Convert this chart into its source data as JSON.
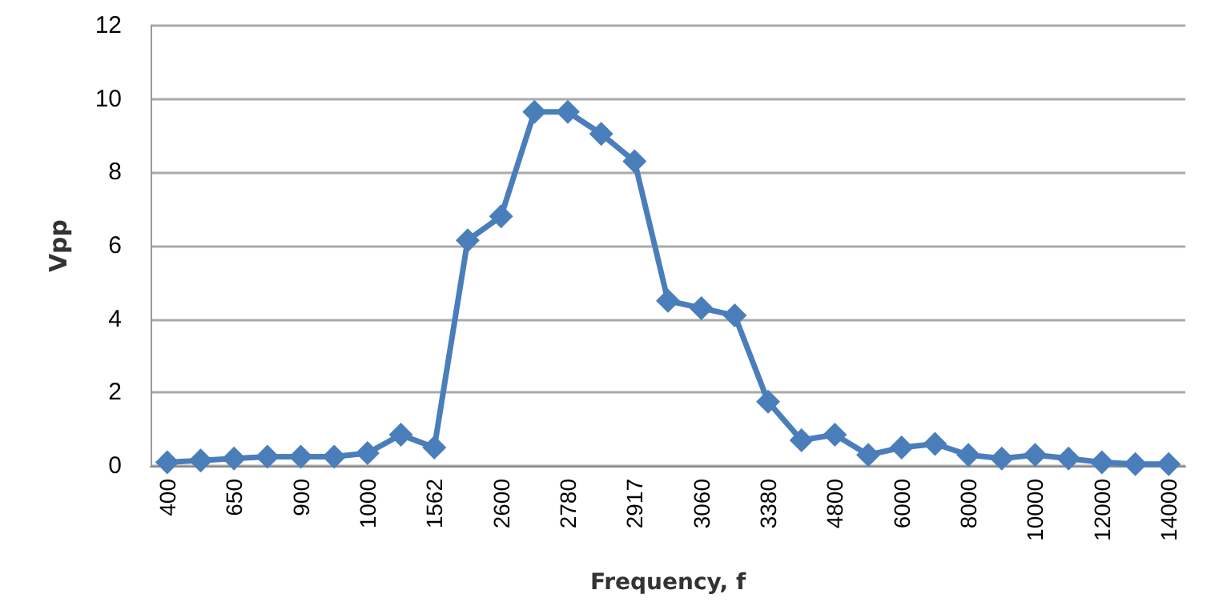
{
  "chart_data": {
    "type": "line",
    "xlabel": "Frequency, f",
    "ylabel": "Vpp",
    "categories": [
      "400",
      null,
      "650",
      null,
      "900",
      null,
      "1000",
      null,
      "1562",
      null,
      "2600",
      null,
      "2780",
      null,
      "2917",
      null,
      "3060",
      null,
      "3380",
      null,
      "4800",
      null,
      "6000",
      null,
      "8000",
      null,
      "10000",
      null,
      "12000",
      null,
      "14000"
    ],
    "series": [
      {
        "color": "#4a7ebb",
        "values": [
          0.1,
          0.15,
          0.2,
          0.25,
          0.25,
          0.25,
          0.35,
          0.85,
          0.5,
          6.15,
          6.8,
          9.65,
          9.65,
          9.05,
          8.3,
          4.5,
          4.3,
          4.1,
          1.75,
          0.7,
          0.85,
          0.3,
          0.5,
          0.6,
          0.3,
          0.2,
          0.3,
          0.2,
          0.1,
          0.05,
          0.05
        ]
      }
    ],
    "ylim": [
      0,
      12
    ],
    "yticks": [
      0,
      2,
      4,
      6,
      8,
      10,
      12
    ],
    "grid": "y",
    "marker": "diamond",
    "line_style": "solid"
  }
}
